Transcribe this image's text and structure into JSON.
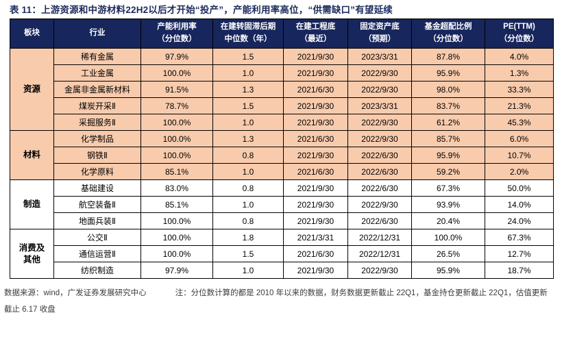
{
  "title": "表 11：上游资源和中游材料22H2以后才开始“投产”，产能利用率高位，“供需缺口”有望延续",
  "colors": {
    "header_bg": "#17265C",
    "row_peach": "#F8CBAD",
    "title_text": "#1B2A5C",
    "border": "#000000"
  },
  "table": {
    "columns": [
      {
        "lines": [
          "板块"
        ]
      },
      {
        "lines": [
          "行业"
        ]
      },
      {
        "lines": [
          "产能利用率",
          "（分位数）"
        ]
      },
      {
        "lines": [
          "在建转固滞后期",
          "中位数（年）"
        ]
      },
      {
        "lines": [
          "在建工程底",
          "（最近）"
        ]
      },
      {
        "lines": [
          "固定资产底",
          "（预期）"
        ]
      },
      {
        "lines": [
          "基金超配比例",
          "（分位数）"
        ]
      },
      {
        "lines": [
          "PE(TTM)",
          "（分位数）"
        ]
      }
    ],
    "sections": [
      {
        "name": "资源",
        "tone": "peach",
        "rows": [
          [
            "稀有金属",
            "97.9%",
            "1.5",
            "2021/9/30",
            "2023/3/31",
            "87.8%",
            "4.0%"
          ],
          [
            "工业金属",
            "100.0%",
            "1.0",
            "2021/9/30",
            "2022/9/30",
            "95.9%",
            "1.3%"
          ],
          [
            "金属非金属新材料",
            "91.5%",
            "1.3",
            "2021/6/30",
            "2022/9/30",
            "98.0%",
            "33.3%"
          ],
          [
            "煤炭开采Ⅱ",
            "78.7%",
            "1.5",
            "2021/9/30",
            "2023/3/31",
            "83.7%",
            "21.3%"
          ],
          [
            "采掘服务Ⅱ",
            "100.0%",
            "1.0",
            "2021/9/30",
            "2022/9/30",
            "61.2%",
            "45.3%"
          ]
        ]
      },
      {
        "name": "材料",
        "tone": "peach",
        "rows": [
          [
            "化学制品",
            "100.0%",
            "1.3",
            "2021/6/30",
            "2022/9/30",
            "85.7%",
            "6.0%"
          ],
          [
            "钢铁Ⅱ",
            "100.0%",
            "0.8",
            "2021/9/30",
            "2022/6/30",
            "95.9%",
            "10.7%"
          ],
          [
            "化学原料",
            "85.1%",
            "1.0",
            "2021/6/30",
            "2022/6/30",
            "59.2%",
            "2.0%"
          ]
        ]
      },
      {
        "name": "制造",
        "tone": "white",
        "rows": [
          [
            "基础建设",
            "83.0%",
            "0.8",
            "2021/9/30",
            "2022/6/30",
            "67.3%",
            "50.0%"
          ],
          [
            "航空装备Ⅱ",
            "85.1%",
            "1.0",
            "2021/9/30",
            "2022/9/30",
            "93.9%",
            "14.0%"
          ],
          [
            "地面兵装Ⅱ",
            "100.0%",
            "0.8",
            "2021/9/30",
            "2022/6/30",
            "20.4%",
            "24.0%"
          ]
        ]
      },
      {
        "name": "消费及\n其他",
        "tone": "white",
        "rows": [
          [
            "公交Ⅱ",
            "100.0%",
            "1.8",
            "2021/3/31",
            "2022/12/31",
            "100.0%",
            "67.3%"
          ],
          [
            "通信运营Ⅱ",
            "100.0%",
            "1.5",
            "2021/6/30",
            "2022/12/31",
            "26.5%",
            "12.7%"
          ],
          [
            "纺织制造",
            "97.9%",
            "1.0",
            "2021/9/30",
            "2022/9/30",
            "95.9%",
            "18.7%"
          ]
        ]
      }
    ]
  },
  "footer": {
    "source": "数据来源：wind，广发证券发展研究中心",
    "note": "注：分位数计算的都是 2010 年以来的数据，财务数据更新截止 22Q1，基金持仓更新截止 22Q1，估值更新截止 6.17 收盘"
  }
}
